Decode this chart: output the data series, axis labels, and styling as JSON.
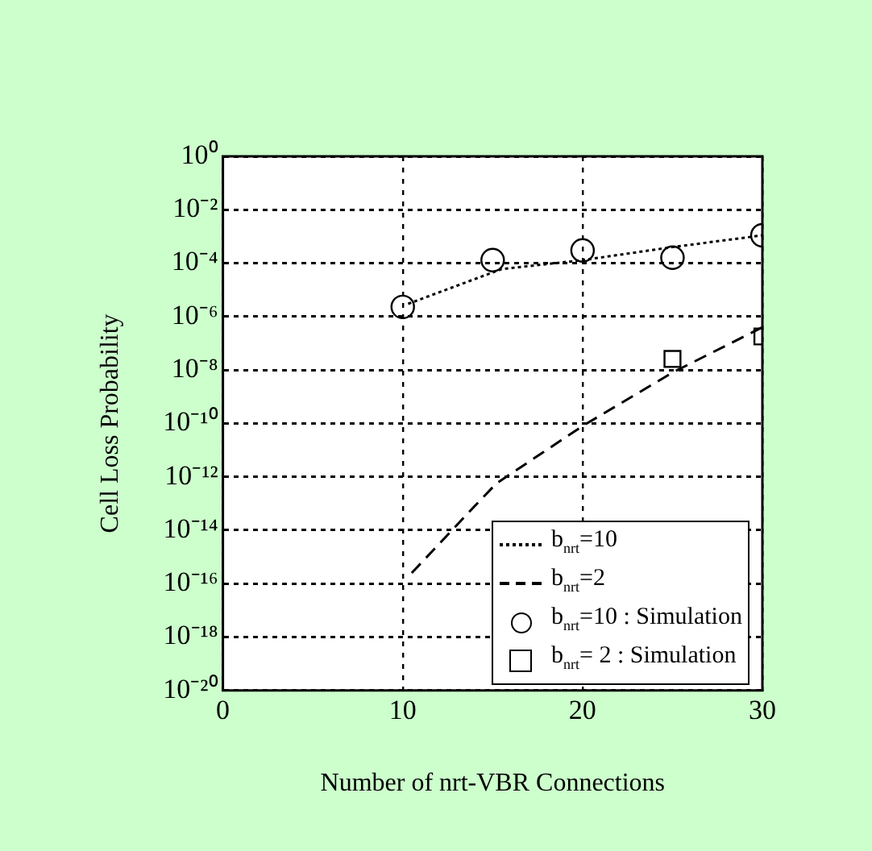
{
  "chart_data": {
    "type": "line",
    "xlabel": "Number of nrt-VBR Connections",
    "ylabel": "Cell Loss Probability",
    "log": "y",
    "grid": true,
    "legend": "bottom right",
    "xlim": [
      0,
      30
    ],
    "xticks": [
      0,
      10,
      20,
      30
    ],
    "ylim": [
      1e-20,
      1
    ],
    "yticks": [
      {
        "value": 1,
        "label": "10⁰"
      },
      {
        "value": 0.01,
        "label": "10⁻²"
      },
      {
        "value": 0.0001,
        "label": "10⁻⁴"
      },
      {
        "value": 1e-06,
        "label": "10⁻⁶"
      },
      {
        "value": 1e-08,
        "label": "10⁻⁸"
      },
      {
        "value": 1e-10,
        "label": "10⁻¹⁰"
      },
      {
        "value": 1e-12,
        "label": "10⁻¹²"
      },
      {
        "value": 1e-14,
        "label": "10⁻¹⁴"
      },
      {
        "value": 1e-16,
        "label": "10⁻¹⁶"
      },
      {
        "value": 1e-18,
        "label": "10⁻¹⁸"
      },
      {
        "value": 1e-20,
        "label": "10⁻²⁰"
      }
    ],
    "series": [
      {
        "name": "b$_{nrt}$=10",
        "line_style": "dotted",
        "marker": "none",
        "color": "#000000",
        "x": [
          10.3,
          15.5,
          20,
          25,
          30
        ],
        "values": [
          3e-06,
          6e-05,
          0.00013,
          0.0004,
          0.0011
        ]
      },
      {
        "name": "b$_{nrt}$=2",
        "line_style": "dashed",
        "marker": "none",
        "color": "#000000",
        "x": [
          10.5,
          14,
          15.2,
          20,
          25,
          30
        ],
        "values": [
          2.5e-16,
          8e-14,
          5.6e-13,
          8e-11,
          8e-09,
          4e-07
        ]
      },
      {
        "name": "b$_{nrt}$=10 : Simulation",
        "type": "scatter",
        "marker": "circle",
        "color": "#000000",
        "x": [
          10,
          15,
          20,
          25,
          30
        ],
        "values": [
          2.3e-06,
          0.00013,
          0.0003,
          0.00016,
          0.0011
        ]
      },
      {
        "name": "b$_{nrt}$= 2 : Simulation",
        "type": "scatter",
        "marker": "square",
        "color": "#000000",
        "x": [
          25,
          30
        ],
        "values": [
          2.6e-08,
          1.8e-07
        ]
      }
    ]
  }
}
